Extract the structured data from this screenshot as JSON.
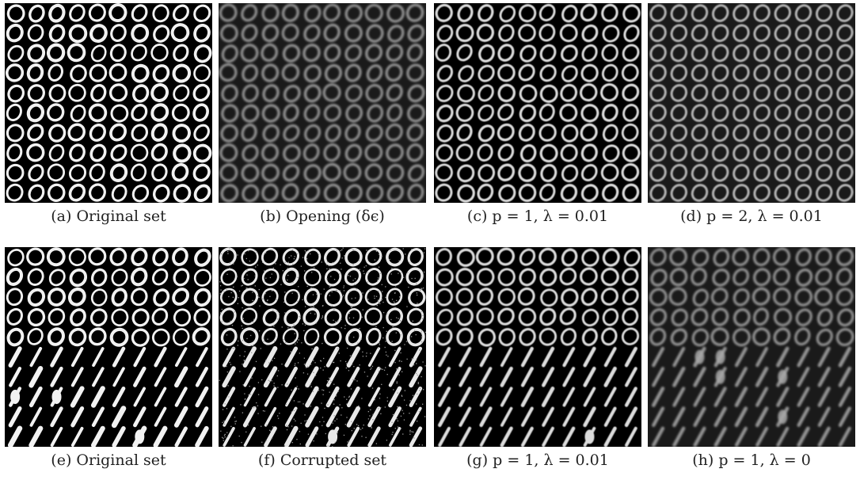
{
  "figure": {
    "panels": [
      {
        "caption": "(a) Original set",
        "content": "digits-0",
        "style": "original"
      },
      {
        "caption": "(b) Opening (δϵ)",
        "content": "digits-0",
        "style": "blurred"
      },
      {
        "caption": "(c) p = 1, λ = 0.01",
        "content": "digits-0",
        "style": "clean"
      },
      {
        "caption": "(d) p = 2, λ = 0.01",
        "content": "digits-0",
        "style": "uniform"
      },
      {
        "caption": "(e) Original set",
        "content": "digits-0-and-1",
        "style": "original"
      },
      {
        "caption": "(f) Corrupted set",
        "content": "digits-0-and-1",
        "style": "noisy"
      },
      {
        "caption": "(g) p = 1, λ = 0.01",
        "content": "digits-0-and-1",
        "style": "clean"
      },
      {
        "caption": "(h) p = 1, λ = 0",
        "content": "digits-0-and-1",
        "style": "blurred"
      }
    ]
  }
}
